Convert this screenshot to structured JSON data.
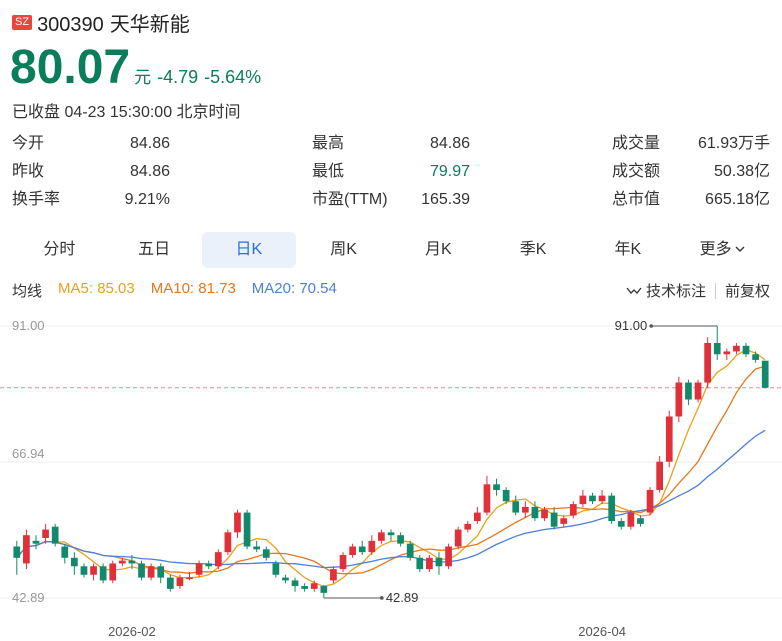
{
  "header": {
    "exchange": "SZ",
    "code": "300390",
    "name": "天华新能"
  },
  "quote": {
    "price": "80.07",
    "unit": "元",
    "change": "-4.79",
    "change_pct": "-5.64%",
    "status": "已收盘 04-23 15:30:00 北京时间"
  },
  "stats_left": [
    {
      "label": "今开",
      "value": "84.86"
    },
    {
      "label": "昨收",
      "value": "84.86"
    },
    {
      "label": "换手率",
      "value": "9.21%"
    }
  ],
  "stats_mid": [
    {
      "label": "最高",
      "value": "84.86"
    },
    {
      "label": "最低",
      "value": "79.97"
    },
    {
      "label": "市盈(TTM)",
      "value": "165.39"
    }
  ],
  "stats_right": [
    {
      "label": "成交量",
      "value": "61.93万手"
    },
    {
      "label": "成交额",
      "value": "50.38亿"
    },
    {
      "label": "总市值",
      "value": "665.18亿"
    }
  ],
  "tabs": [
    "分时",
    "五日",
    "日K",
    "周K",
    "月K",
    "季K",
    "年K",
    "更多"
  ],
  "active_tab": "日K",
  "ma": {
    "title": "均线",
    "ma5": "MA5: 85.03",
    "ma10": "MA10: 81.73",
    "ma20": "MA20: 70.54"
  },
  "tools": {
    "mark": "技术标注",
    "adjust": "前复权"
  },
  "colors": {
    "up": "#e0303a",
    "down": "#13896b",
    "ma5": "#e8a21c",
    "ma10": "#e8771f",
    "ma20": "#4d7fd9"
  },
  "chart_data": {
    "type": "candlestick",
    "y_ticks": [
      "91.00",
      "66.94",
      "42.89"
    ],
    "ylim": [
      42.89,
      91.0
    ],
    "x_labels": [
      "2026-02",
      "2026-04"
    ],
    "high_label": "91.00",
    "low_label": "42.89",
    "candles": [
      [
        52,
        50,
        53,
        47
      ],
      [
        49,
        54,
        55,
        48
      ],
      [
        53,
        52.5,
        54,
        51.5
      ],
      [
        53.5,
        55,
        56,
        52.5
      ],
      [
        55.5,
        52.5,
        56,
        52
      ],
      [
        52,
        50,
        52.5,
        49
      ],
      [
        50,
        48.5,
        51,
        47
      ],
      [
        48.5,
        47,
        49,
        46.5
      ],
      [
        47,
        48.5,
        49,
        46
      ],
      [
        48.5,
        46,
        49,
        45.5
      ],
      [
        46,
        49,
        49.5,
        45.5
      ],
      [
        49,
        49.5,
        50,
        48.5
      ],
      [
        49.5,
        49,
        50.5,
        48
      ],
      [
        49,
        46.5,
        49.5,
        46
      ],
      [
        46.5,
        48.5,
        49,
        46
      ],
      [
        48.5,
        46.5,
        49,
        45.5
      ],
      [
        46.5,
        44.5,
        47,
        44
      ],
      [
        45,
        46.5,
        47,
        44.5
      ],
      [
        46.5,
        46.5,
        47.5,
        46
      ],
      [
        47,
        49,
        49.5,
        46.5
      ],
      [
        49,
        48.5,
        49.5,
        48
      ],
      [
        48.5,
        51,
        51.5,
        48
      ],
      [
        51,
        54.5,
        55,
        50.5
      ],
      [
        54.5,
        58,
        58.5,
        53.5
      ],
      [
        58,
        52,
        58.5,
        51.5
      ],
      [
        52,
        51.5,
        53,
        51
      ],
      [
        51.5,
        50,
        52,
        49.5
      ],
      [
        49,
        47,
        49.5,
        46.5
      ],
      [
        46.5,
        46,
        47,
        45.5
      ],
      [
        46,
        45,
        46.5,
        44
      ],
      [
        45,
        44.5,
        45.5,
        44
      ],
      [
        44.5,
        45.5,
        46,
        44
      ],
      [
        45,
        43.8,
        45.2,
        42.9
      ],
      [
        46,
        48,
        48.5,
        45.5
      ],
      [
        48,
        50.5,
        51,
        47.5
      ],
      [
        50.5,
        52,
        52.5,
        50
      ],
      [
        52,
        51,
        53,
        50.5
      ],
      [
        51,
        53,
        54,
        50.5
      ],
      [
        53,
        54.5,
        55,
        52.5
      ],
      [
        54.5,
        54,
        55,
        53
      ],
      [
        54,
        52.5,
        54.5,
        52
      ],
      [
        52.5,
        50,
        53,
        49.5
      ],
      [
        50,
        48,
        50.5,
        47.5
      ],
      [
        48,
        50,
        50.5,
        47.5
      ],
      [
        50,
        48.5,
        51,
        47
      ],
      [
        48.5,
        52,
        52.5,
        48
      ],
      [
        52,
        55,
        55.5,
        51.5
      ],
      [
        55,
        56,
        56.5,
        54.5
      ],
      [
        56.5,
        58,
        59,
        56
      ],
      [
        58,
        63,
        64.5,
        57.5
      ],
      [
        63,
        62,
        64,
        61
      ],
      [
        62,
        60,
        62.5,
        59.5
      ],
      [
        60,
        58,
        61,
        57.5
      ],
      [
        58,
        59,
        60,
        57
      ],
      [
        59,
        57,
        60,
        56.5
      ],
      [
        57,
        58.5,
        59,
        56.5
      ],
      [
        58,
        55.5,
        59,
        55
      ],
      [
        56,
        57,
        57.5,
        55.5
      ],
      [
        57.5,
        59.5,
        60,
        57
      ],
      [
        59.5,
        61,
        62,
        59
      ],
      [
        61,
        60,
        61.5,
        59.5
      ],
      [
        60,
        61,
        62,
        59.5
      ],
      [
        61,
        56.5,
        61.5,
        56
      ],
      [
        56.5,
        55.5,
        57,
        55
      ],
      [
        55.5,
        58,
        58.5,
        55
      ],
      [
        57,
        56,
        57.5,
        55.5
      ],
      [
        58,
        62,
        62.5,
        57.5
      ],
      [
        62,
        67,
        68,
        61.5
      ],
      [
        67,
        75,
        76,
        66
      ],
      [
        75,
        81,
        82,
        74
      ],
      [
        81,
        78,
        81.5,
        77
      ],
      [
        78,
        81,
        81.5,
        77.5
      ],
      [
        81,
        88,
        89,
        80
      ],
      [
        88,
        86,
        91,
        85
      ],
      [
        86,
        86.5,
        87,
        85
      ],
      [
        86.5,
        87.5,
        88,
        86
      ],
      [
        87.5,
        86,
        88,
        85.5
      ],
      [
        86,
        85,
        86.5,
        84.5
      ],
      [
        84.86,
        80.07,
        84.86,
        79.97
      ]
    ]
  }
}
